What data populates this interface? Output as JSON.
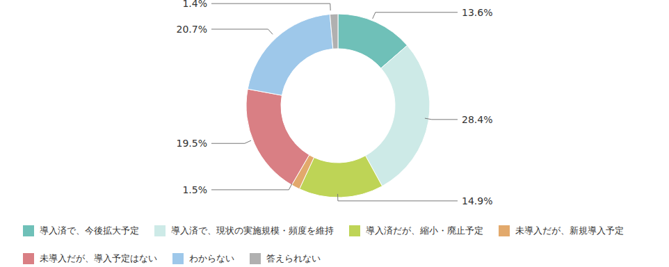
{
  "chart_data": {
    "type": "donut",
    "categories": [
      "導入済で、今後拡大予定",
      "導入済で、現状の実施規模・頻度を維持",
      "導入済だが、縮小・廃止予定",
      "未導入だが、新規導入予定",
      "未導入だが、導入予定はない",
      "わからない",
      "答えられない"
    ],
    "values": [
      13.6,
      28.4,
      14.9,
      1.5,
      19.5,
      20.7,
      1.4
    ],
    "value_labels": [
      "13.6%",
      "28.4%",
      "14.9%",
      "1.5%",
      "19.5%",
      "20.7%",
      "1.4%"
    ],
    "colors": [
      "#6fc0b8",
      "#cdeae7",
      "#bed456",
      "#e2a96c",
      "#d97f84",
      "#9ec8ea",
      "#b0b0b0"
    ],
    "data_labels": true,
    "legend": "bottom"
  }
}
